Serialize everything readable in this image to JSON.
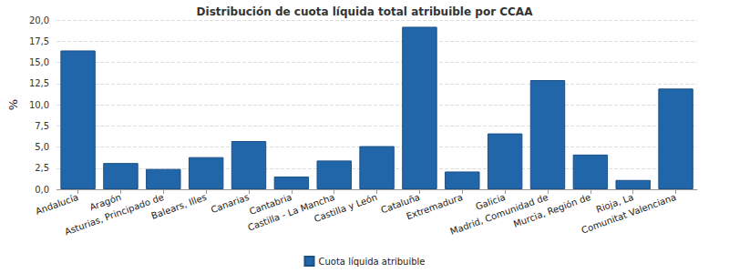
{
  "chart_data": {
    "type": "bar",
    "title": "Distribución de cuota líquida total atribuible por CCAA",
    "y_label": "%",
    "categories": [
      "Andalucía",
      "Aragón",
      "Asturias, Principado de",
      "Balears, Illes",
      "Canarias",
      "Cantabria",
      "Castilla - La Mancha",
      "Castilla y León",
      "Cataluña",
      "Extremadura",
      "Galicia",
      "Madrid, Comunidad de",
      "Murcia, Región de",
      "Rioja, La",
      "Comunitat Valenciana"
    ],
    "series": [
      {
        "name": "Cuota líquida atribuible",
        "color": "#2166a8",
        "values": [
          16.4,
          3.1,
          2.4,
          3.8,
          5.7,
          1.5,
          3.4,
          5.1,
          19.2,
          2.1,
          6.6,
          12.9,
          4.1,
          1.1,
          11.9
        ]
      }
    ],
    "ylim": [
      0,
      20
    ],
    "yticks": [
      {
        "value": 0,
        "label": "0,0"
      },
      {
        "value": 2.5,
        "label": "2,5"
      },
      {
        "value": 5,
        "label": "5,0"
      },
      {
        "value": 7.5,
        "label": "7,5"
      },
      {
        "value": 10,
        "label": "10,0"
      },
      {
        "value": 12.5,
        "label": "12,5"
      },
      {
        "value": 15,
        "label": "15,0"
      },
      {
        "value": 17.5,
        "label": "17,5"
      },
      {
        "value": 20,
        "label": "20,0"
      }
    ],
    "grid": true,
    "legend": "bottom"
  }
}
